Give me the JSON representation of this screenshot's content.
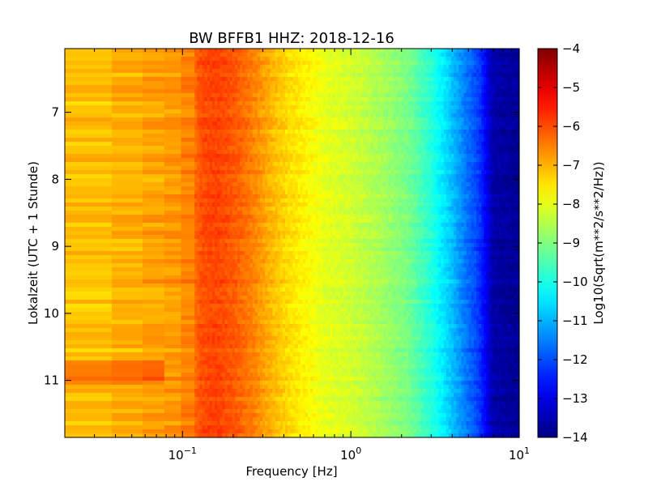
{
  "chart_data": {
    "type": "heatmap",
    "title": "BW BFFB1 HHZ: 2018-12-16",
    "xlabel": "Frequency [Hz]",
    "ylabel": "Lokalzeit (UTC + 1 Stunde)",
    "x_scale": "log",
    "xlim": [
      0.02,
      10
    ],
    "ylim": [
      11.85,
      6.05
    ],
    "x_ticks": [
      {
        "value": 0.1,
        "base": "10",
        "exp": "−1"
      },
      {
        "value": 1,
        "base": "10",
        "exp": "0"
      },
      {
        "value": 10,
        "base": "10",
        "exp": "1"
      }
    ],
    "y_ticks": [
      {
        "value": 7,
        "label": "7"
      },
      {
        "value": 8,
        "label": "8"
      },
      {
        "value": 9,
        "label": "9"
      },
      {
        "value": 10,
        "label": "10"
      },
      {
        "value": 11,
        "label": "11"
      }
    ],
    "colorbar": {
      "label": "Log10(Sqrt(m**2/s**2/Hz))",
      "range": [
        -14,
        -4
      ],
      "colormap": "jet",
      "ticks": [
        "−4",
        "−5",
        "−6",
        "−7",
        "−8",
        "−9",
        "−10",
        "−11",
        "−12",
        "−13",
        "−14"
      ]
    },
    "spectrum_profile": {
      "frequency_hz": [
        0.02,
        0.038,
        0.06,
        0.085,
        0.11,
        0.13,
        0.16,
        0.2,
        0.26,
        0.33,
        0.42,
        0.55,
        0.7,
        1.0,
        1.5,
        2.2,
        3.0,
        3.7,
        4.6,
        5.8,
        7.0,
        10.0
      ],
      "log10_amplitude": [
        -7.3,
        -7.0,
        -6.9,
        -6.8,
        -6.5,
        -6.0,
        -5.9,
        -6.1,
        -6.5,
        -7.0,
        -7.4,
        -7.7,
        -8.0,
        -8.2,
        -8.6,
        -9.1,
        -9.9,
        -10.6,
        -11.4,
        -12.2,
        -13.6,
        -13.8
      ]
    },
    "time_range": [
      6.05,
      11.85
    ]
  }
}
